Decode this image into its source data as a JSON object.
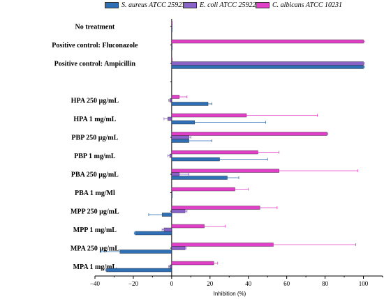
{
  "chart_data": {
    "type": "bar",
    "orientation": "horizontal",
    "xlabel": "Inhibition (%)",
    "xlim": [
      -40,
      110
    ],
    "xticks": [
      "−40",
      "−20",
      "0",
      "20",
      "40",
      "60",
      "80",
      "100"
    ],
    "categories": [
      "No treatment",
      "Positive control: Fluconazole",
      "Positive control: Ampicillin",
      "",
      "HPA 250 µg/mL",
      "HPA 1 mg/mL",
      "PBP 250 µg/mL",
      "PBP 1 mg/mL",
      "PBA 250 µg/mL",
      "PBA 1 mg/Ml",
      "MPP 250 µg/mL",
      "MPP 1 mg/mL",
      "MPA 250 µg/mL",
      "MPA 1 mg/mL"
    ],
    "legend_position": "top",
    "series": [
      {
        "name": "S. aureus ATCC 25923",
        "color": "#2e6fb5",
        "values": [
          0,
          0,
          100,
          null,
          19,
          12,
          9,
          25,
          29,
          0,
          -5,
          -19,
          -27,
          -34
        ],
        "errors": [
          0,
          0,
          0.5,
          null,
          2,
          37,
          12,
          25,
          6,
          2,
          7,
          0.5,
          10,
          0.5
        ]
      },
      {
        "name": "E. coli ATCC 25922",
        "color": "#8a63c9",
        "values": [
          0,
          0,
          100,
          null,
          -1,
          -2,
          9,
          -1,
          4,
          0,
          7,
          -4,
          7,
          -1
        ],
        "errors": [
          0,
          0,
          0.5,
          null,
          0.5,
          2,
          1,
          1,
          5,
          2,
          1,
          1,
          0.5,
          0.5
        ]
      },
      {
        "name": "C. albicans ATCC 10231",
        "color": "#e040c8",
        "values": [
          0,
          100,
          0,
          null,
          4,
          39,
          81,
          45,
          56,
          33,
          46,
          17,
          53,
          22
        ],
        "errors": [
          0,
          0.5,
          0,
          null,
          4,
          37,
          0.5,
          11,
          41,
          7,
          9,
          11,
          43,
          2
        ]
      }
    ]
  }
}
